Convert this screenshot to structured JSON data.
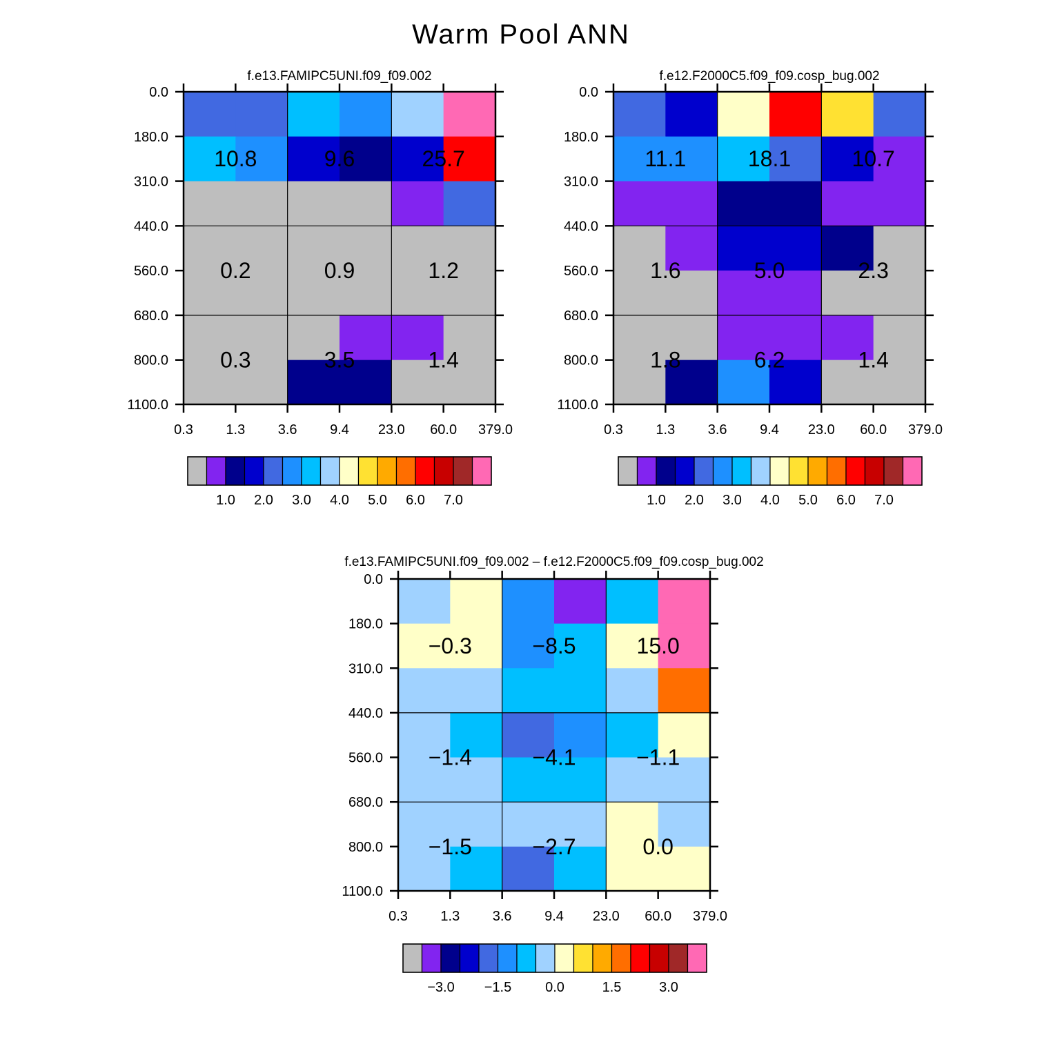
{
  "figure_title": "Warm Pool ANN",
  "palette": [
    "#bebebe",
    "#8224f0",
    "#00008c",
    "#0000cd",
    "#4169e1",
    "#1e90ff",
    "#00bfff",
    "#a0d2ff",
    "#ffffc8",
    "#ffe132",
    "#ffaa00",
    "#ff6e00",
    "#ff0000",
    "#c80000",
    "#a02828",
    "#ff69b4"
  ],
  "chart_data": [
    {
      "type": "heatmap",
      "title": "f.e13.FAMIPC5UNI.f09_f09.002",
      "x_tick_labels": [
        "0.3",
        "1.3",
        "3.6",
        "9.4",
        "23.0",
        "60.0",
        "379.0"
      ],
      "y_tick_labels": [
        "0.0",
        "180.0",
        "310.0",
        "440.0",
        "560.0",
        "680.0",
        "800.0",
        "1100.0"
      ],
      "cell_color_index": [
        [
          4,
          4,
          6,
          5,
          7,
          15
        ],
        [
          6,
          5,
          3,
          2,
          3,
          12
        ],
        [
          0,
          0,
          0,
          0,
          1,
          4
        ],
        [
          0,
          0,
          0,
          0,
          0,
          0
        ],
        [
          0,
          0,
          0,
          0,
          0,
          0
        ],
        [
          0,
          0,
          0,
          1,
          1,
          0
        ],
        [
          0,
          0,
          2,
          2,
          0,
          0
        ]
      ],
      "box_values": [
        [
          "10.8",
          "9.6",
          "25.7"
        ],
        [
          "0.2",
          "0.9",
          "1.2"
        ],
        [
          "0.3",
          "3.5",
          "1.4"
        ]
      ],
      "colorbar_labels": [
        "1.0",
        "2.0",
        "3.0",
        "4.0",
        "5.0",
        "6.0",
        "7.0"
      ]
    },
    {
      "type": "heatmap",
      "title": "f.e12.F2000C5.f09_f09.cosp_bug.002",
      "x_tick_labels": [
        "0.3",
        "1.3",
        "3.6",
        "9.4",
        "23.0",
        "60.0",
        "379.0"
      ],
      "y_tick_labels": [
        "0.0",
        "180.0",
        "310.0",
        "440.0",
        "560.0",
        "680.0",
        "800.0",
        "1100.0"
      ],
      "cell_color_index": [
        [
          4,
          3,
          8,
          12,
          9,
          4
        ],
        [
          5,
          5,
          6,
          4,
          3,
          1
        ],
        [
          1,
          1,
          2,
          2,
          1,
          1
        ],
        [
          0,
          1,
          3,
          3,
          2,
          0
        ],
        [
          0,
          0,
          1,
          1,
          0,
          0
        ],
        [
          0,
          0,
          1,
          1,
          1,
          0
        ],
        [
          0,
          2,
          5,
          3,
          0,
          0
        ]
      ],
      "box_values": [
        [
          "11.1",
          "18.1",
          "10.7"
        ],
        [
          "1.6",
          "5.0",
          "2.3"
        ],
        [
          "1.8",
          "6.2",
          "1.4"
        ]
      ],
      "colorbar_labels": [
        "1.0",
        "2.0",
        "3.0",
        "4.0",
        "5.0",
        "6.0",
        "7.0"
      ]
    },
    {
      "type": "heatmap",
      "title": "f.e13.FAMIPC5UNI.f09_f09.002 – f.e12.F2000C5.f09_f09.cosp_bug.002",
      "x_tick_labels": [
        "0.3",
        "1.3",
        "3.6",
        "9.4",
        "23.0",
        "60.0",
        "379.0"
      ],
      "y_tick_labels": [
        "0.0",
        "180.0",
        "310.0",
        "440.0",
        "560.0",
        "680.0",
        "800.0",
        "1100.0"
      ],
      "cell_color_index": [
        [
          7,
          8,
          5,
          1,
          6,
          15
        ],
        [
          8,
          8,
          5,
          6,
          8,
          15
        ],
        [
          7,
          7,
          6,
          6,
          7,
          11
        ],
        [
          7,
          6,
          4,
          5,
          6,
          8
        ],
        [
          7,
          7,
          6,
          6,
          7,
          7
        ],
        [
          7,
          7,
          7,
          7,
          8,
          7
        ],
        [
          7,
          6,
          4,
          6,
          8,
          8
        ]
      ],
      "box_values": [
        [
          "−0.3",
          "−8.5",
          "15.0"
        ],
        [
          "−1.4",
          "−4.1",
          "−1.1"
        ],
        [
          "−1.5",
          "−2.7",
          "0.0"
        ]
      ],
      "colorbar_labels": [
        "−3.0",
        "−1.5",
        "0.0",
        "1.5",
        "3.0"
      ]
    }
  ]
}
